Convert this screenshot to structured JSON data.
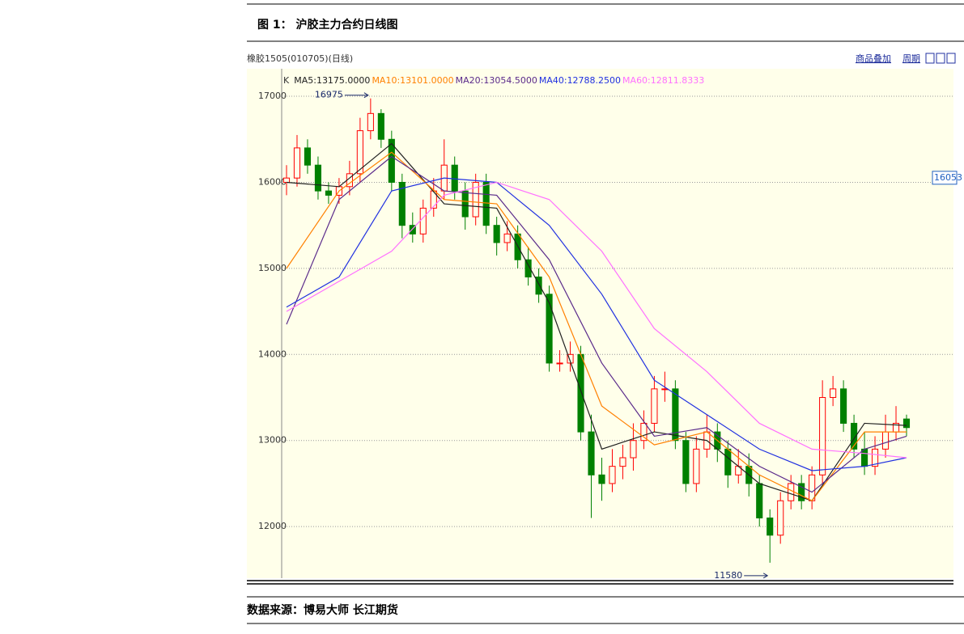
{
  "caption": "图 1：  沪胶主力合约日线图",
  "source": "数据来源：博易大师  长江期货",
  "chart_data": {
    "type": "candlestick",
    "title": "橡胶1505(010705)(日线)",
    "toolbar": [
      "商品叠加",
      "周期"
    ],
    "legend_prefix": "K",
    "x": [
      0,
      1,
      2,
      3,
      4,
      5,
      6,
      7,
      8,
      9,
      10,
      11,
      12,
      13,
      14,
      15,
      16,
      17,
      18,
      19,
      20,
      21,
      22,
      23,
      24,
      25,
      26,
      27,
      28,
      29,
      30,
      31,
      32,
      33,
      34,
      35,
      36,
      37,
      38,
      39,
      40,
      41,
      42,
      43,
      44,
      45,
      46,
      47,
      48,
      49,
      50,
      51,
      52,
      53,
      54,
      55,
      56,
      57,
      58,
      59
    ],
    "open": [
      16000,
      16050,
      16400,
      16200,
      15900,
      15850,
      15950,
      16100,
      16600,
      16800,
      16500,
      16000,
      15500,
      15400,
      15700,
      15900,
      16200,
      15900,
      15600,
      16000,
      15500,
      15300,
      15400,
      15100,
      14900,
      14700,
      13900,
      13900,
      14000,
      13100,
      12600,
      12500,
      12700,
      12800,
      13000,
      13200,
      13600,
      13600,
      13000,
      12500,
      12900,
      13100,
      12900,
      12600,
      12700,
      12500,
      12100,
      11900,
      12300,
      12500,
      12300,
      12600,
      13500,
      13600,
      13200,
      12900,
      12700,
      12900,
      13100,
      13250
    ],
    "high": [
      16200,
      16550,
      16500,
      16300,
      16000,
      16050,
      16250,
      16750,
      16975,
      16850,
      16600,
      16100,
      15650,
      15800,
      16050,
      16500,
      16300,
      16000,
      16100,
      16100,
      15600,
      15550,
      15500,
      15250,
      15000,
      14800,
      14050,
      14150,
      14100,
      13300,
      12800,
      12900,
      12950,
      13200,
      13350,
      13750,
      13800,
      13700,
      13100,
      13050,
      13300,
      13200,
      13000,
      12900,
      12850,
      12600,
      12200,
      12400,
      12600,
      12600,
      12700,
      13700,
      13750,
      13700,
      13300,
      13100,
      13050,
      13300,
      13400,
      13300
    ],
    "low": [
      15850,
      15950,
      16100,
      15800,
      15750,
      15750,
      15850,
      16000,
      16500,
      16400,
      15900,
      15350,
      15300,
      15300,
      15600,
      15800,
      15800,
      15450,
      15500,
      15400,
      15150,
      15200,
      15000,
      14800,
      14600,
      13800,
      13800,
      13800,
      13000,
      12100,
      12300,
      12400,
      12550,
      12650,
      12900,
      13100,
      13450,
      12900,
      12400,
      12400,
      12800,
      12750,
      12450,
      12500,
      12350,
      12000,
      11580,
      11800,
      12200,
      12200,
      12200,
      12500,
      13400,
      13100,
      12800,
      12600,
      12600,
      12800,
      13000,
      13050
    ],
    "close": [
      16050,
      16400,
      16200,
      15900,
      15850,
      15950,
      16100,
      16600,
      16800,
      16500,
      16000,
      15500,
      15400,
      15700,
      15900,
      16200,
      15900,
      15600,
      16000,
      15500,
      15300,
      15400,
      15100,
      14900,
      14700,
      13900,
      13900,
      14000,
      13100,
      12600,
      12500,
      12700,
      12800,
      13000,
      13200,
      13600,
      13600,
      13000,
      12500,
      12900,
      13100,
      12900,
      12600,
      12700,
      12500,
      12100,
      11900,
      12300,
      12500,
      12300,
      12600,
      13500,
      13600,
      13200,
      12900,
      12700,
      12900,
      13100,
      13200,
      13150
    ],
    "up_color": "#ff0000",
    "down_color": "#008000",
    "series": [
      {
        "name": "MA5:13175.0000",
        "color": "#202020",
        "x": [
          0,
          5,
          10,
          15,
          20,
          25,
          30,
          35,
          40,
          45,
          50,
          55,
          59
        ],
        "values": [
          16000,
          15950,
          16450,
          15750,
          15700,
          14600,
          12900,
          13100,
          13000,
          12500,
          12300,
          13200,
          13175
        ]
      },
      {
        "name": "MA10:13101.0000",
        "color": "#ff8000",
        "x": [
          0,
          5,
          10,
          15,
          20,
          25,
          30,
          35,
          40,
          45,
          50,
          55,
          59
        ],
        "values": [
          15000,
          15900,
          16350,
          15800,
          15750,
          14900,
          13400,
          12950,
          13100,
          12600,
          12300,
          13100,
          13100
        ]
      },
      {
        "name": "MA20:13054.5000",
        "color": "#5a2a8a",
        "x": [
          0,
          5,
          10,
          15,
          20,
          25,
          30,
          35,
          40,
          45,
          50,
          55,
          59
        ],
        "values": [
          14350,
          15800,
          16300,
          15900,
          15850,
          15100,
          13900,
          13050,
          13150,
          12700,
          12400,
          12900,
          13050
        ]
      },
      {
        "name": "MA40:12788.2500",
        "color": "#2030e0",
        "x": [
          0,
          5,
          10,
          15,
          20,
          25,
          30,
          35,
          40,
          45,
          50,
          55,
          59
        ],
        "values": [
          14550,
          14900,
          15900,
          16050,
          16000,
          15500,
          14700,
          13700,
          13300,
          12900,
          12650,
          12700,
          12800
        ]
      },
      {
        "name": "MA60:12811.8333",
        "color": "#ff70ff",
        "x": [
          0,
          5,
          10,
          15,
          20,
          25,
          30,
          35,
          40,
          45,
          50,
          55,
          59
        ],
        "values": [
          14500,
          14850,
          15200,
          15850,
          16000,
          15800,
          15200,
          14300,
          13800,
          13200,
          12900,
          12850,
          12800
        ]
      }
    ],
    "ylim": [
      11400,
      17320
    ],
    "yticks": [
      12000,
      13000,
      14000,
      15000,
      16000,
      17000
    ],
    "grid": true,
    "cursor_value": 16053
  }
}
